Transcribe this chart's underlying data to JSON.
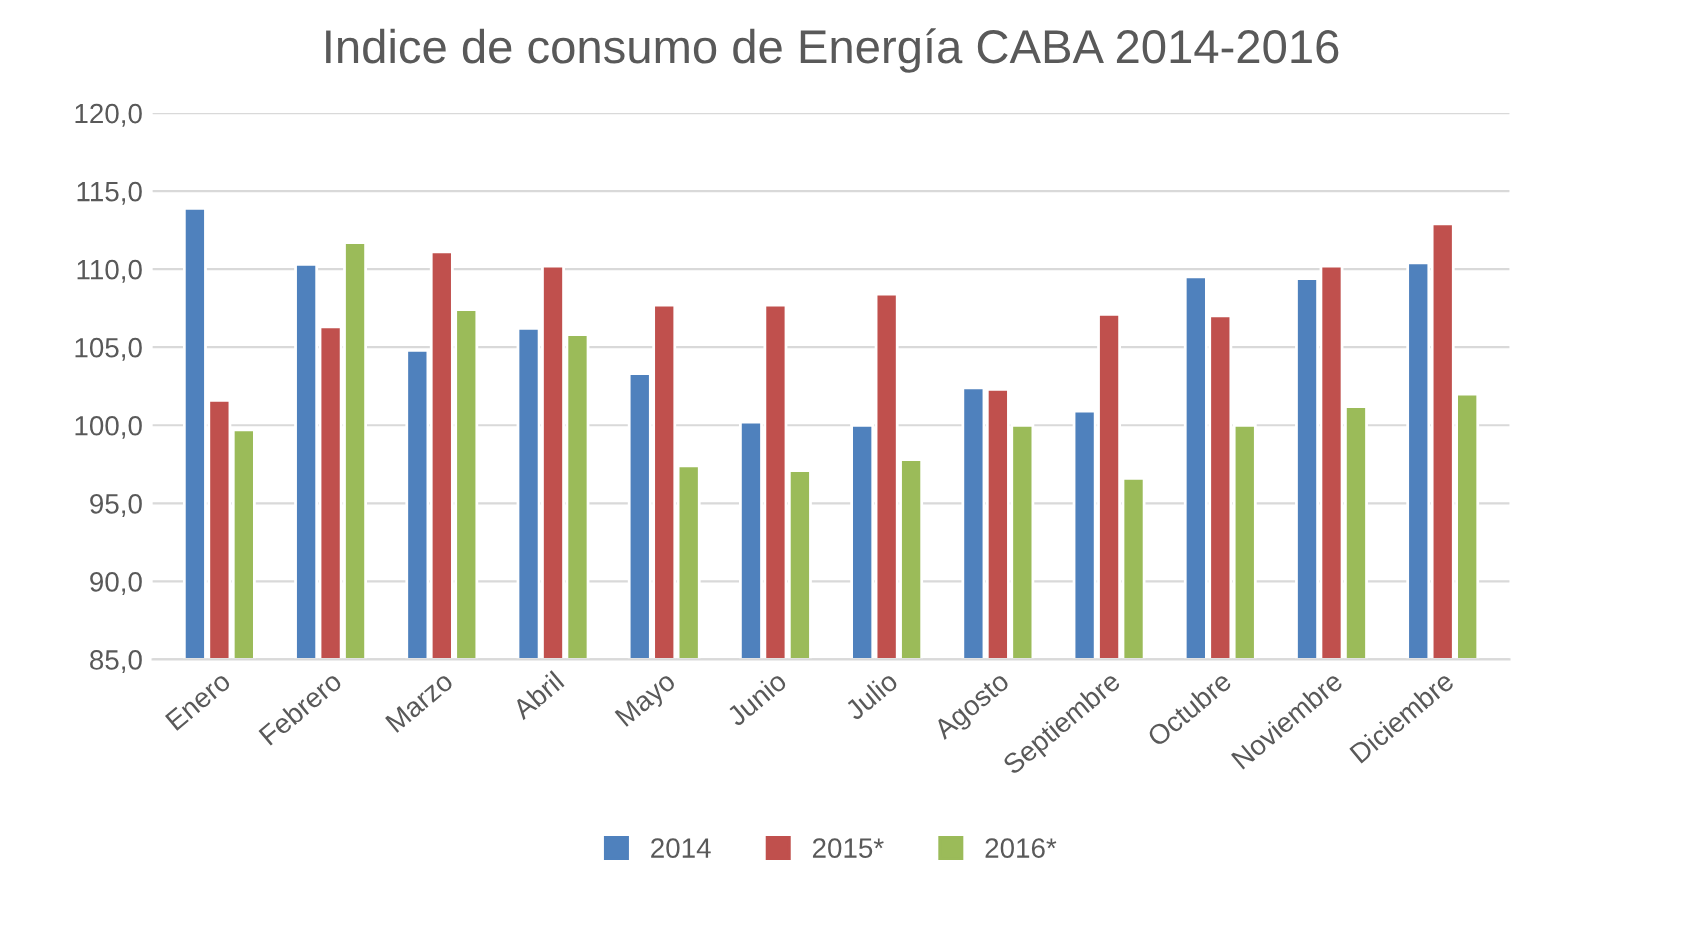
{
  "chart_data": {
    "type": "bar",
    "title": "Indice de consumo de Energía CABA 2014-2016",
    "categories": [
      "Enero",
      "Febrero",
      "Marzo",
      "Abril",
      "Mayo",
      "Junio",
      "Julio",
      "Agosto",
      "Septiembre",
      "Octubre",
      "Noviembre",
      "Diciembre"
    ],
    "series": [
      {
        "name": "2014",
        "color": "#4f81bd",
        "values": [
          113.9,
          110.3,
          104.8,
          106.2,
          103.3,
          100.2,
          100.0,
          102.4,
          100.9,
          109.5,
          109.4,
          110.4
        ]
      },
      {
        "name": "2015*",
        "color": "#c0504d",
        "values": [
          101.6,
          106.3,
          111.1,
          110.2,
          107.7,
          107.7,
          108.4,
          102.3,
          107.1,
          107.0,
          110.2,
          112.9
        ]
      },
      {
        "name": "2016*",
        "color": "#9bbb59",
        "values": [
          99.7,
          111.7,
          107.4,
          105.8,
          97.4,
          97.1,
          97.8,
          100.0,
          96.6,
          100.0,
          101.2,
          102.0
        ]
      }
    ],
    "ylim": [
      85,
      120
    ],
    "yticks": [
      {
        "value": 85,
        "label": "85,0"
      },
      {
        "value": 90,
        "label": "90,0"
      },
      {
        "value": 95,
        "label": "95,0"
      },
      {
        "value": 100,
        "label": "100,0"
      },
      {
        "value": 105,
        "label": "105,0"
      },
      {
        "value": 110,
        "label": "110,0"
      },
      {
        "value": 115,
        "label": "115,0"
      },
      {
        "value": 120,
        "label": "120,0"
      }
    ],
    "grid": "y",
    "legend": "bottom"
  }
}
